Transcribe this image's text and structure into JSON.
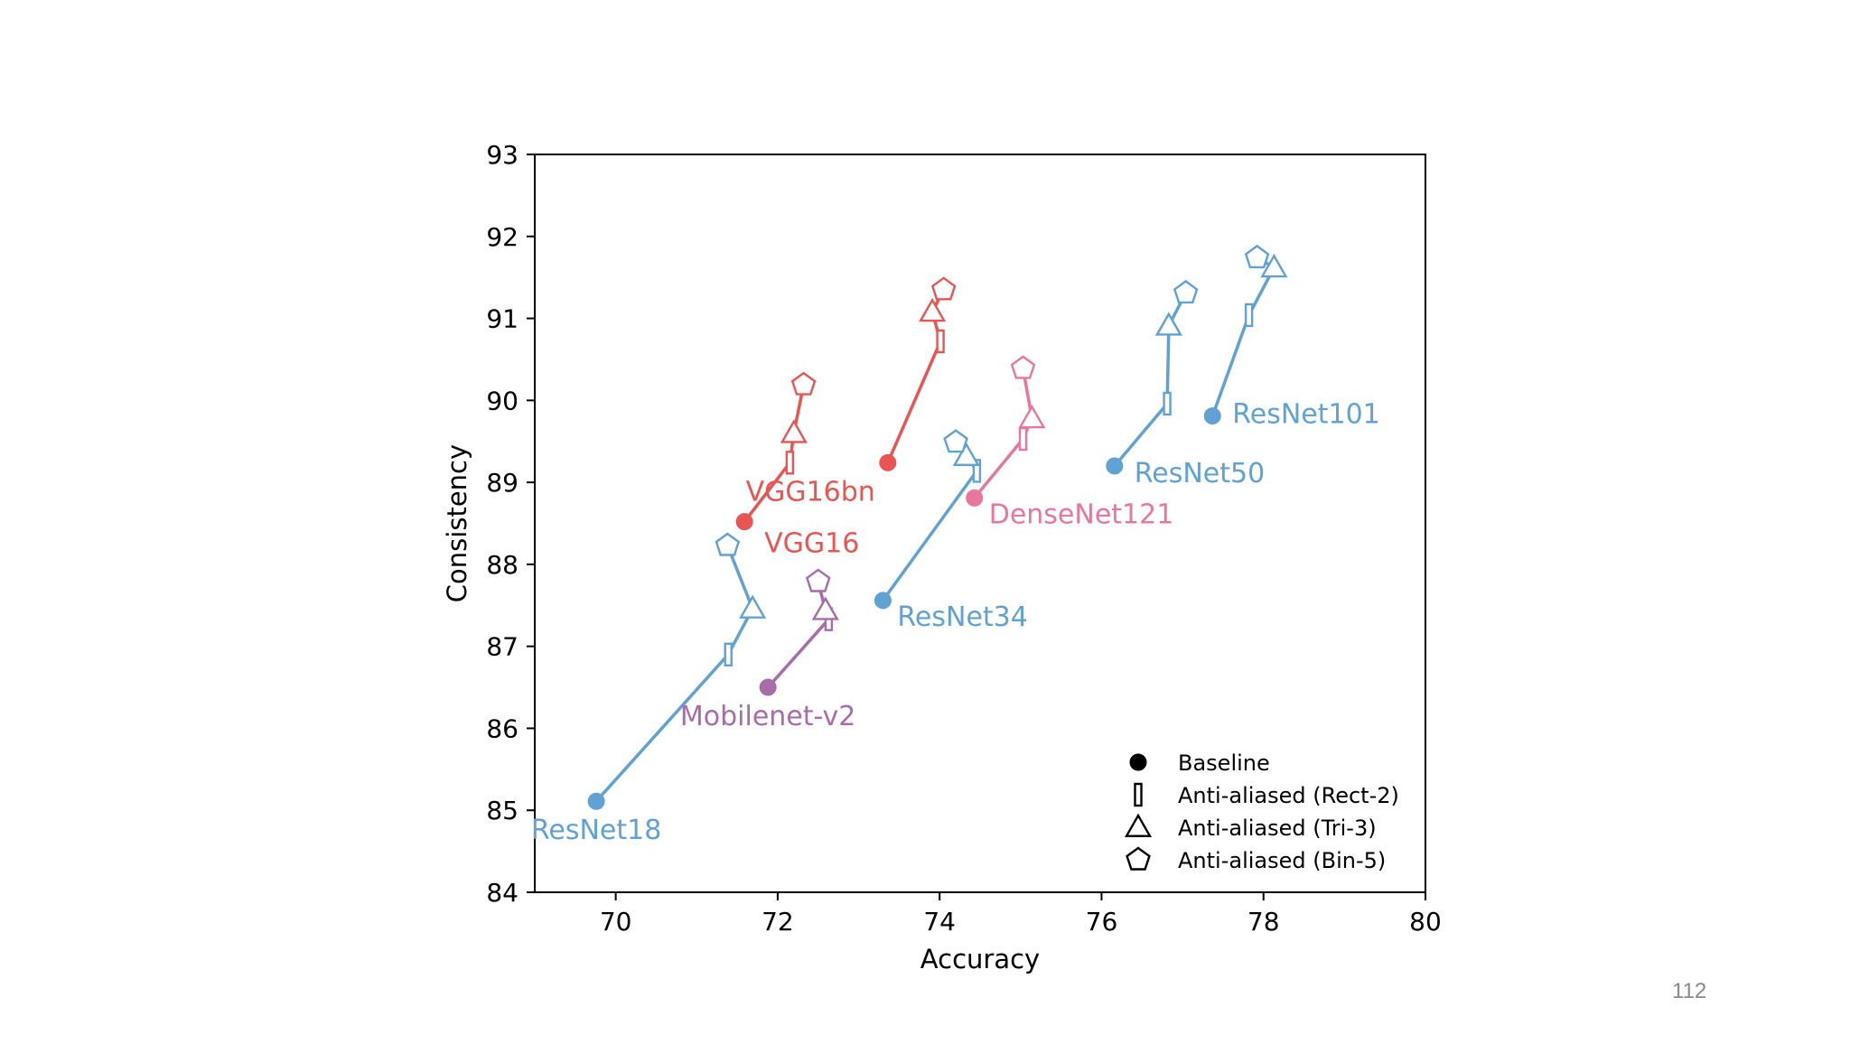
{
  "page_number": "112",
  "chart_data": {
    "type": "scatter",
    "xlabel": "Accuracy",
    "ylabel": "Consistency",
    "xlim": [
      69,
      80
    ],
    "ylim": [
      84,
      93
    ],
    "xticks": [
      70,
      72,
      74,
      76,
      78,
      80
    ],
    "yticks": [
      84,
      85,
      86,
      87,
      88,
      89,
      90,
      91,
      92,
      93
    ],
    "grid": false,
    "legend": {
      "position": "bottom-right",
      "entries": [
        {
          "marker": "circle",
          "label": "Baseline"
        },
        {
          "marker": "rect",
          "label": "Anti-aliased (Rect-2)"
        },
        {
          "marker": "triangle",
          "label": "Anti-aliased (Tri-3)"
        },
        {
          "marker": "pentagon",
          "label": "Anti-aliased (Bin-5)"
        }
      ]
    },
    "colors": {
      "resnet": "#5fa2d3",
      "vgg": "#e85552",
      "densenet": "#e8769f",
      "mobilenet": "#a86cab"
    },
    "series": [
      {
        "name": "ResNet18",
        "color_key": "resnet",
        "points": [
          {
            "x": 69.76,
            "y": 85.11
          },
          {
            "x": 71.39,
            "y": 86.9
          },
          {
            "x": 71.69,
            "y": 87.46
          },
          {
            "x": 71.38,
            "y": 88.23
          }
        ],
        "label_anchor": "below"
      },
      {
        "name": "ResNet34",
        "color_key": "resnet",
        "points": [
          {
            "x": 73.3,
            "y": 87.56
          },
          {
            "x": 74.46,
            "y": 89.14
          },
          {
            "x": 74.33,
            "y": 89.32
          },
          {
            "x": 74.2,
            "y": 89.49
          }
        ],
        "label_anchor": "below-right"
      },
      {
        "name": "ResNet50",
        "color_key": "resnet",
        "points": [
          {
            "x": 76.16,
            "y": 89.2
          },
          {
            "x": 76.81,
            "y": 89.96
          },
          {
            "x": 76.83,
            "y": 90.91
          },
          {
            "x": 77.04,
            "y": 91.31
          }
        ],
        "label_anchor": "right"
      },
      {
        "name": "ResNet101",
        "color_key": "resnet",
        "points": [
          {
            "x": 77.37,
            "y": 89.81
          },
          {
            "x": 77.82,
            "y": 91.04
          },
          {
            "x": 78.13,
            "y": 91.62
          },
          {
            "x": 77.92,
            "y": 91.74
          }
        ],
        "label_anchor": "right"
      },
      {
        "name": "VGG16",
        "color_key": "vgg",
        "points": [
          {
            "x": 71.59,
            "y": 88.52
          },
          {
            "x": 72.15,
            "y": 89.24
          },
          {
            "x": 72.2,
            "y": 89.6
          },
          {
            "x": 72.32,
            "y": 90.19
          }
        ],
        "label_anchor": "right"
      },
      {
        "name": "VGG16bn",
        "color_key": "vgg",
        "points": [
          {
            "x": 73.36,
            "y": 89.24
          },
          {
            "x": 74.01,
            "y": 90.72
          },
          {
            "x": 73.91,
            "y": 91.08
          },
          {
            "x": 74.05,
            "y": 91.35
          }
        ],
        "label_anchor": "below-left"
      },
      {
        "name": "DenseNet121",
        "color_key": "densenet",
        "points": [
          {
            "x": 74.43,
            "y": 88.81
          },
          {
            "x": 75.03,
            "y": 89.53
          },
          {
            "x": 75.14,
            "y": 89.78
          },
          {
            "x": 75.03,
            "y": 90.39
          }
        ],
        "label_anchor": "below-right"
      },
      {
        "name": "Mobilenet-v2",
        "color_key": "mobilenet",
        "points": [
          {
            "x": 71.88,
            "y": 86.5
          },
          {
            "x": 72.63,
            "y": 87.33
          },
          {
            "x": 72.59,
            "y": 87.44
          },
          {
            "x": 72.5,
            "y": 87.79
          }
        ],
        "label_anchor": "below"
      }
    ]
  }
}
